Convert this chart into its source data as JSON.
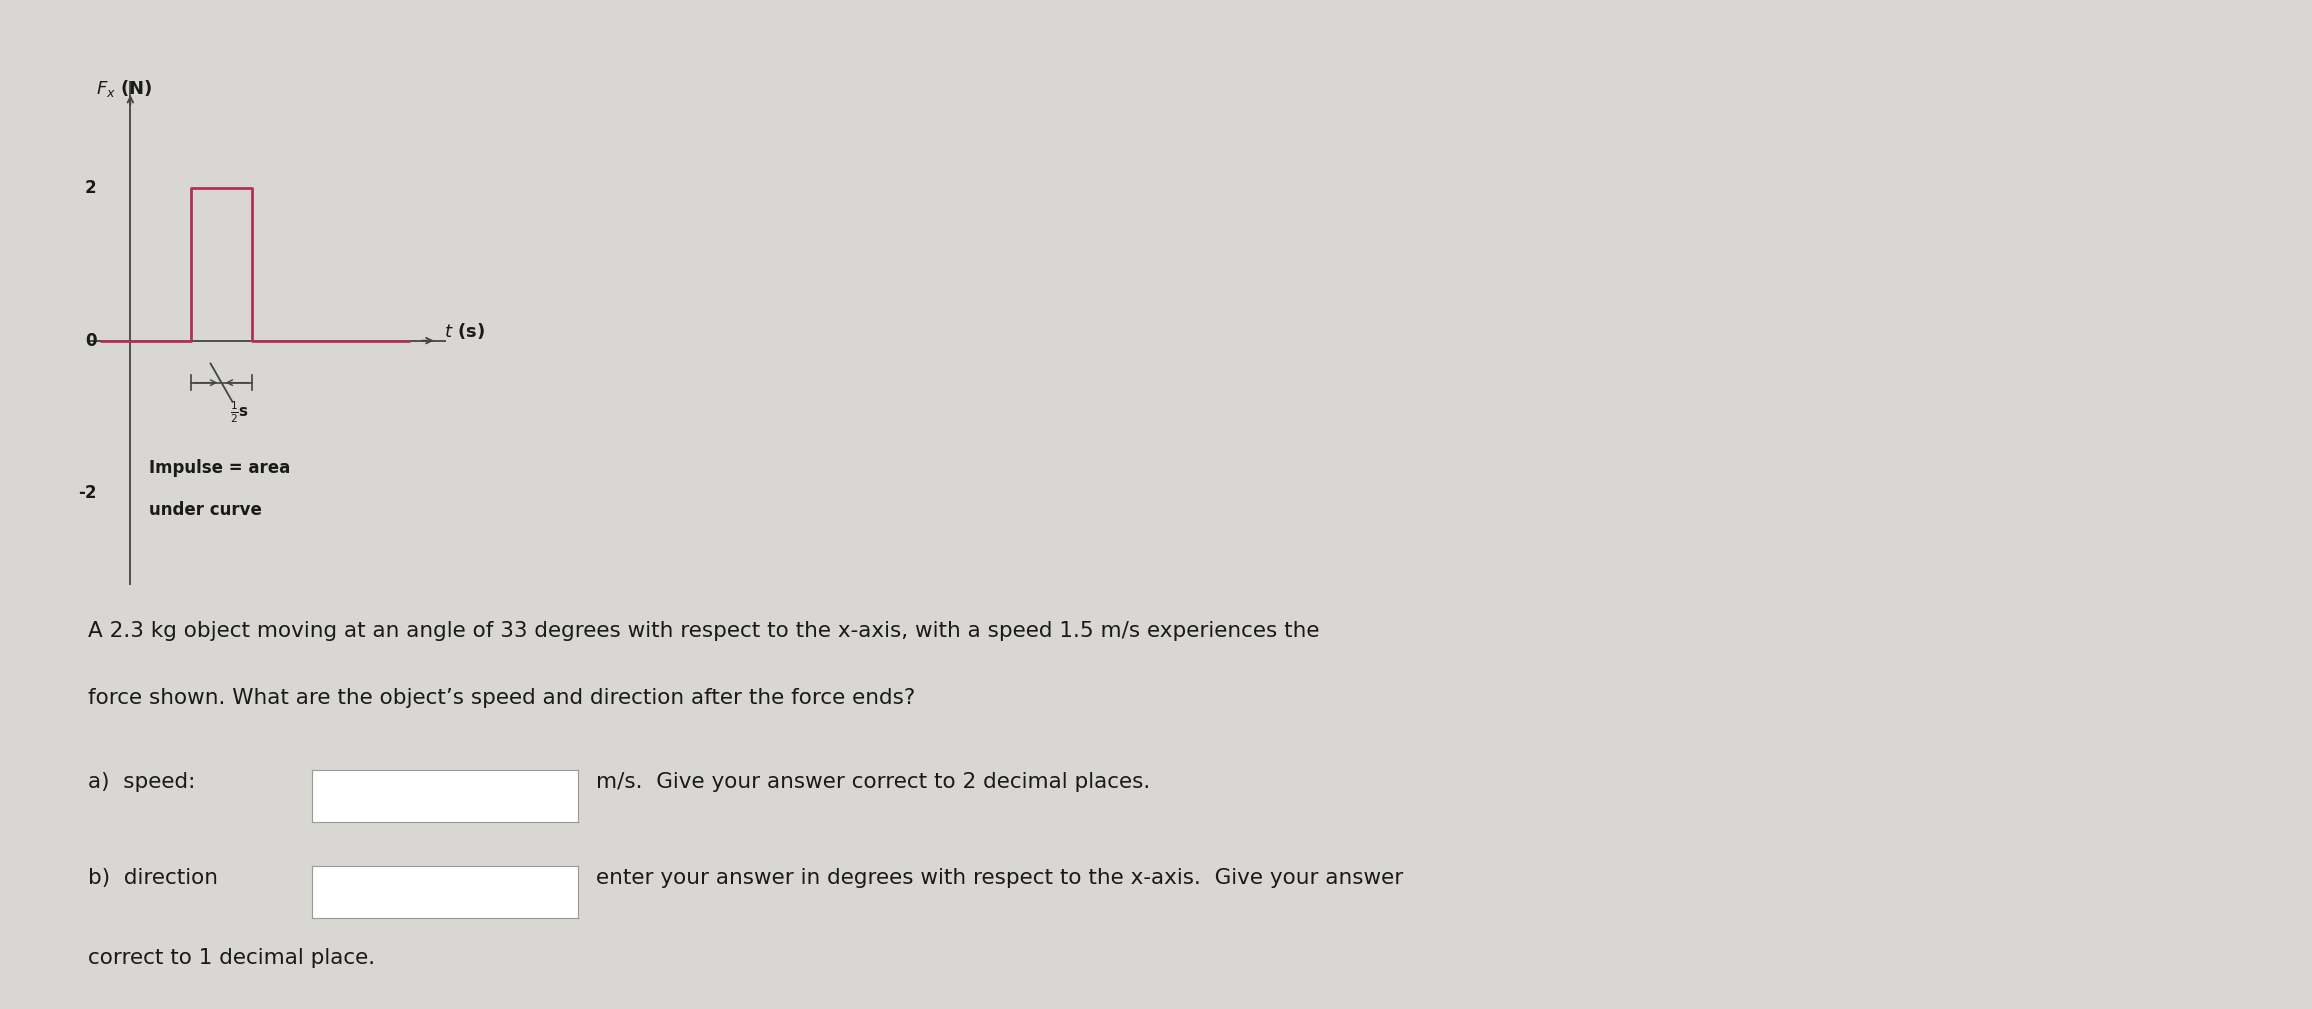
{
  "ylabel": "$F_x$ (N)",
  "xlabel": "$t$ (s)",
  "yticks": [
    -2,
    0,
    2
  ],
  "ylim": [
    -3.2,
    3.4
  ],
  "xlim": [
    -0.35,
    2.6
  ],
  "bg_color": "#d9d7d4",
  "line_color": "#b03060",
  "axis_color": "#444444",
  "pulse_x_start": 0.5,
  "pulse_x_end": 1.0,
  "pulse_y": 2,
  "problem_text_line1": "A 2.3 kg object moving at an angle of 33 degrees with respect to the x-axis, with a speed 1.5 m/s experiences the",
  "problem_text_line2": "force shown. What are the object’s speed and direction after the force ends?",
  "answer_a_label": "a)  speed:",
  "answer_a_suffix": "m/s.  Give your answer correct to 2 decimal places.",
  "answer_b_label": "b)  direction",
  "answer_b_suffix": "enter your answer in degrees with respect to the x-axis.  Give your answer",
  "answer_b_last": "correct to 1 decimal place.",
  "impulse_line1": "Impulse = area",
  "impulse_line2": "under curve",
  "text_color": "#1a1a1a",
  "figsize": [
    23.12,
    10.09
  ],
  "dpi": 100
}
